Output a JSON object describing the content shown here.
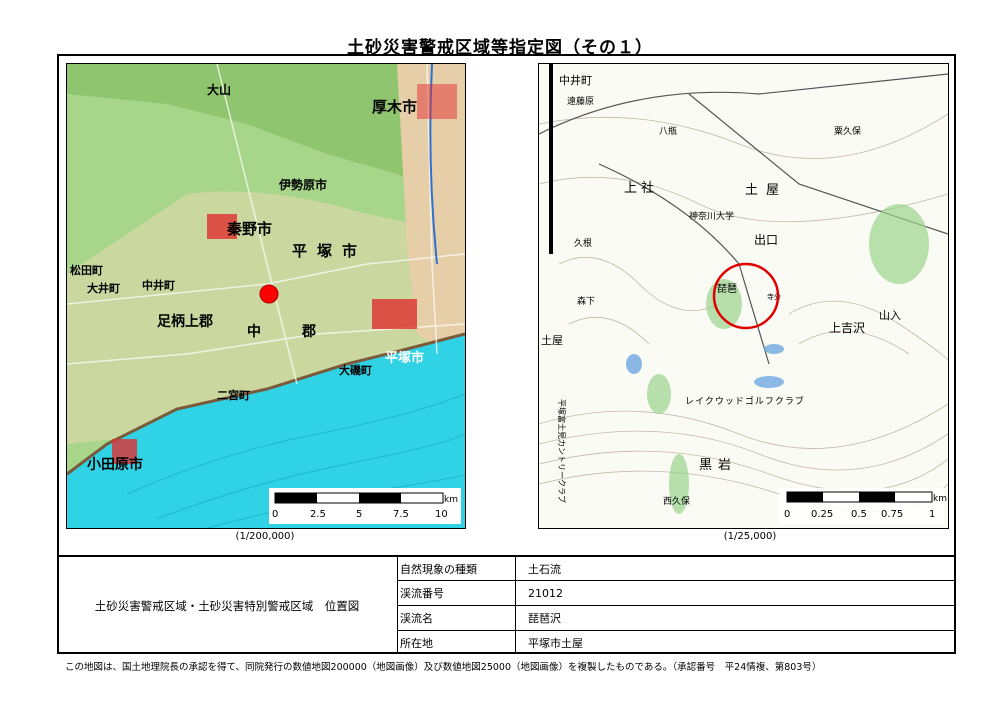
{
  "title": "土砂災害警戒区域等指定図（その１）",
  "left_map": {
    "scale_label": "(1/200,000)",
    "scale_bar": {
      "ticks": [
        "0",
        "2.5",
        "5",
        "7.5",
        "10"
      ],
      "unit": "km"
    },
    "place_labels": [
      "大山",
      "厚木市",
      "伊勢原市",
      "秦野市",
      "平塚市",
      "足柄上郡",
      "中",
      "郡",
      "平塚市",
      "大磯町",
      "小田原市",
      "中井町",
      "大井町",
      "松田町",
      "二宮町"
    ],
    "marker_color": "#ff0000",
    "colors": {
      "land": "#9ccf7a",
      "urban": "#e8c9a0",
      "sea": "#2fd4e8",
      "city": "#e03030"
    }
  },
  "right_map": {
    "scale_label": "(1/25,000)",
    "scale_bar": {
      "ticks": [
        "0",
        "0.25",
        "0.5",
        "0.75",
        "1"
      ],
      "unit": "km"
    },
    "place_labels": [
      "中井町",
      "遠藤原",
      "八瓶",
      "土屋",
      "粟久保",
      "上 社",
      "神奈川大学",
      "出口",
      "寺分",
      "久根",
      "琵琶",
      "森下",
      "上吉沢",
      "山入",
      "土屋",
      "レイクウッドゴルフクラブ",
      "黒岩",
      "西久保",
      "平塚富士見カントリークラブ"
    ],
    "circle_color": "#e00000"
  },
  "info_table": {
    "caption": "土砂災害警戒区域・土砂災害特別警戒区域　位置図",
    "rows": [
      {
        "label": "自然現象の種類",
        "value": "土石流"
      },
      {
        "label": "渓流番号",
        "value": "21012"
      },
      {
        "label": "渓流名",
        "value": "琵琶沢"
      },
      {
        "label": "所在地",
        "value": "平塚市土屋"
      }
    ]
  },
  "footer": "この地図は、国土地理院長の承認を得て、同院発行の数値地図200000（地図画像）及び数値地図25000（地図画像）を複製したものである。（承認番号　平24情複、第803号）"
}
